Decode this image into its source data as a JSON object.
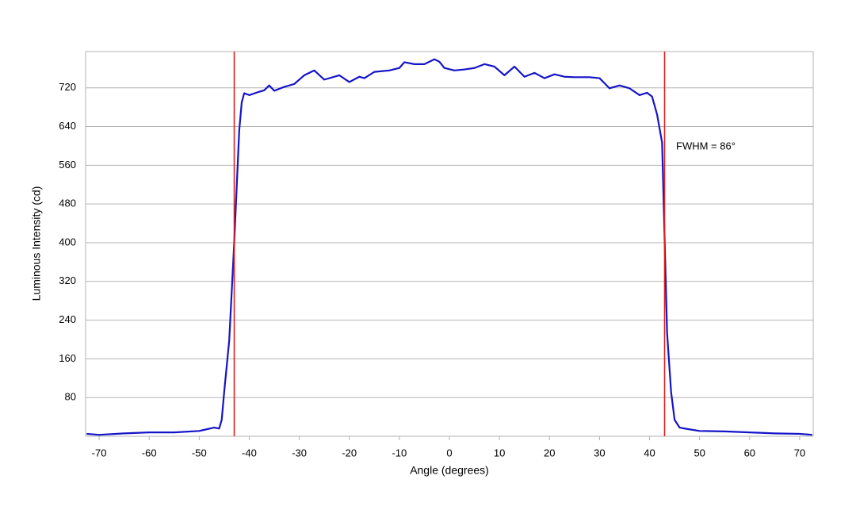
{
  "chart_data": {
    "type": "line",
    "xlabel": "Angle (degrees)",
    "ylabel": "Luminous Intensity (cd)",
    "annotation": "FWHM = 86°",
    "x": [
      -72.5,
      -70,
      -65,
      -60,
      -55,
      -50,
      -47,
      -46,
      -45.5,
      -45,
      -44,
      -43,
      -42,
      -41.5,
      -41,
      -40,
      -38,
      -37,
      -36,
      -35,
      -33,
      -31,
      -29,
      -27,
      -25,
      -22,
      -20,
      -18,
      -17,
      -15,
      -12,
      -10,
      -9,
      -7,
      -5,
      -3,
      -2,
      -1,
      1,
      3,
      5,
      7,
      9,
      11,
      13,
      15,
      17,
      19,
      21,
      23,
      25,
      28,
      30,
      32,
      34,
      36,
      38,
      39.5,
      40.5,
      41.5,
      42.5,
      43,
      43.5,
      44.3,
      45,
      46,
      47,
      50,
      55,
      60,
      65,
      70,
      72.5
    ],
    "series": [
      {
        "color": "#1414c8",
        "values": [
          5,
          3,
          6,
          8,
          8,
          11,
          18,
          16,
          34,
          92,
          198,
          400,
          632,
          690,
          709,
          705,
          712,
          715,
          725,
          714,
          722,
          728,
          746,
          756,
          737,
          746,
          732,
          743,
          740,
          753,
          756,
          761,
          773,
          769,
          769,
          779,
          774,
          761,
          756,
          758,
          761,
          769,
          764,
          746,
          764,
          743,
          751,
          740,
          748,
          743,
          742,
          742,
          740,
          719,
          725,
          719,
          705,
          710,
          702,
          665,
          607,
          411,
          214,
          92,
          34,
          18,
          16,
          11,
          10,
          8,
          6,
          5,
          3
        ]
      }
    ],
    "vlines": [
      -43,
      43
    ],
    "vline_color": "#e02020",
    "xlim": [
      -72.7,
      72.7
    ],
    "xticks": [
      -70,
      -60,
      -50,
      -40,
      -30,
      -20,
      -10,
      0,
      10,
      20,
      30,
      40,
      50,
      60,
      70
    ],
    "ylim": [
      0,
      795
    ],
    "yticks": [
      80,
      160,
      240,
      320,
      400,
      480,
      560,
      640,
      720
    ],
    "grid": true
  }
}
